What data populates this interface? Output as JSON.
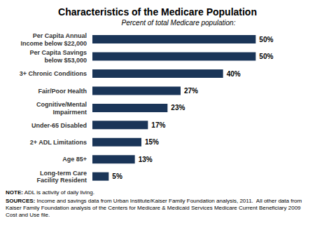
{
  "chart_data": {
    "type": "bar",
    "orientation": "horizontal",
    "title": "Characteristics of the Medicare Population",
    "subtitle": "Percent of total Medicare population:",
    "categories": [
      "Long-term Care\nFacility Resident",
      "Age 85+",
      "2+ ADL Limitations",
      "Under-65 Disabled",
      "Cognitive/Mental\nImpairment",
      "Fair/Poor Health",
      "3+ Chronic Conditions",
      "Per Capita Savings\nbelow $53,000",
      "Per Capita Annual\nIncome below $22,000"
    ],
    "values": [
      5,
      13,
      15,
      17,
      23,
      27,
      40,
      50,
      50
    ],
    "value_labels": [
      "5%",
      "13%",
      "15%",
      "17%",
      "23%",
      "27%",
      "40%",
      "50%",
      "50%"
    ],
    "data_labels": true,
    "color": "#1a3558",
    "xlim": [
      0,
      60
    ],
    "tick_labels": "y",
    "grid": false,
    "annotations": [
      "NOTE: ADL is activity of daily living.",
      "SOURCES: Income and savings data from Urban Institute/Kaiser Family Foundation analysis, 2011.  All other data from Kaiser Family Foundation analysis of the Centers for Medicare & Medicaid Services Medicare Current Beneficiary 2009 Cost and Use file."
    ]
  }
}
